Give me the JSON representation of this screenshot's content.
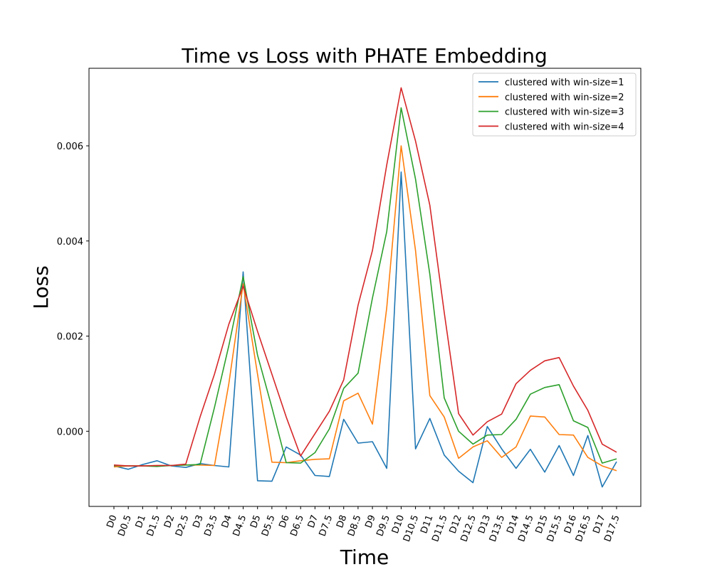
{
  "chart_data": {
    "type": "line",
    "title": "Time vs Loss with PHATE Embedding",
    "xlabel": "Time",
    "ylabel": "Loss",
    "categories": [
      "D0",
      "D0.5",
      "D1",
      "D1.5",
      "D2",
      "D2.5",
      "D3",
      "D3.5",
      "D4",
      "D4.5",
      "D5",
      "D5.5",
      "D6",
      "D6.5",
      "D7",
      "D7.5",
      "D8",
      "D8.5",
      "D9",
      "D9.5",
      "D10",
      "D10.5",
      "D11",
      "D11.5",
      "D12",
      "D12.5",
      "D13",
      "D13.5",
      "D14",
      "D14.5",
      "D15",
      "D15.5",
      "D16",
      "D16.5",
      "D17",
      "D17.5"
    ],
    "y_ticks": [
      0.0,
      0.002,
      0.004,
      0.006
    ],
    "y_tick_labels": [
      "0.000",
      "0.002",
      "0.004",
      "0.006"
    ],
    "ylim": [
      -0.00158,
      0.00763
    ],
    "grid": false,
    "legend_position": "top-right",
    "series": [
      {
        "name": "clustered with win-size=1",
        "color": "#1f77b4",
        "values": [
          -0.00073,
          -0.0008,
          -0.0007,
          -0.00062,
          -0.00073,
          -0.00076,
          -0.00068,
          -0.00072,
          -0.00075,
          0.00335,
          -0.00104,
          -0.00105,
          -0.00033,
          -0.0005,
          -0.00093,
          -0.00095,
          0.00025,
          -0.00025,
          -0.00022,
          -0.00078,
          0.00545,
          -0.00037,
          0.00027,
          -0.0005,
          -0.00084,
          -0.00108,
          0.0001,
          -0.00037,
          -0.00078,
          -0.00038,
          -0.00086,
          -0.0003,
          -0.00093,
          -9e-05,
          -0.00117,
          -0.00064
        ]
      },
      {
        "name": "clustered with win-size=2",
        "color": "#ff7f0e",
        "values": [
          -0.00075,
          -0.00073,
          -0.00073,
          -0.00072,
          -0.00072,
          -0.00071,
          -0.00071,
          -0.00072,
          0.001,
          0.0031,
          0.0012,
          -0.00065,
          -0.00066,
          -0.00062,
          -0.00059,
          -0.00058,
          0.00064,
          0.0008,
          0.00015,
          0.0026,
          0.006,
          0.0038,
          0.00075,
          0.0003,
          -0.00057,
          -0.00033,
          -0.0002,
          -0.00055,
          -0.00033,
          0.00032,
          0.0003,
          -7e-05,
          -8e-05,
          -0.00055,
          -0.00073,
          -0.00083
        ]
      },
      {
        "name": "clustered with win-size=3",
        "color": "#2ca02c",
        "values": [
          -0.00072,
          -0.00073,
          -0.00073,
          -0.00074,
          -0.00072,
          -0.00071,
          -0.0007,
          0.0005,
          0.0018,
          0.00325,
          0.0016,
          0.0005,
          -0.00066,
          -0.00067,
          -0.00045,
          5e-05,
          0.0009,
          0.00122,
          0.0028,
          0.0042,
          0.0068,
          0.0053,
          0.0033,
          0.0007,
          0.0,
          -0.00027,
          -8e-05,
          -7e-05,
          0.00025,
          0.00078,
          0.00092,
          0.00098,
          0.00022,
          8e-05,
          -0.00067,
          -0.00058
        ]
      },
      {
        "name": "clustered with win-size=4",
        "color": "#d62728",
        "values": [
          -0.00071,
          -0.00073,
          -0.00073,
          -0.00072,
          -0.00072,
          -0.00069,
          0.0003,
          0.0012,
          0.00225,
          0.00305,
          0.0021,
          0.0012,
          0.0003,
          -0.00052,
          -5e-05,
          0.00042,
          0.00108,
          0.00265,
          0.0038,
          0.0056,
          0.00722,
          0.0061,
          0.00475,
          0.0025,
          0.00037,
          -8e-05,
          0.0002,
          0.00036,
          0.001,
          0.00128,
          0.00148,
          0.00155,
          0.00095,
          0.00044,
          -0.00027,
          -0.00044
        ]
      }
    ]
  }
}
